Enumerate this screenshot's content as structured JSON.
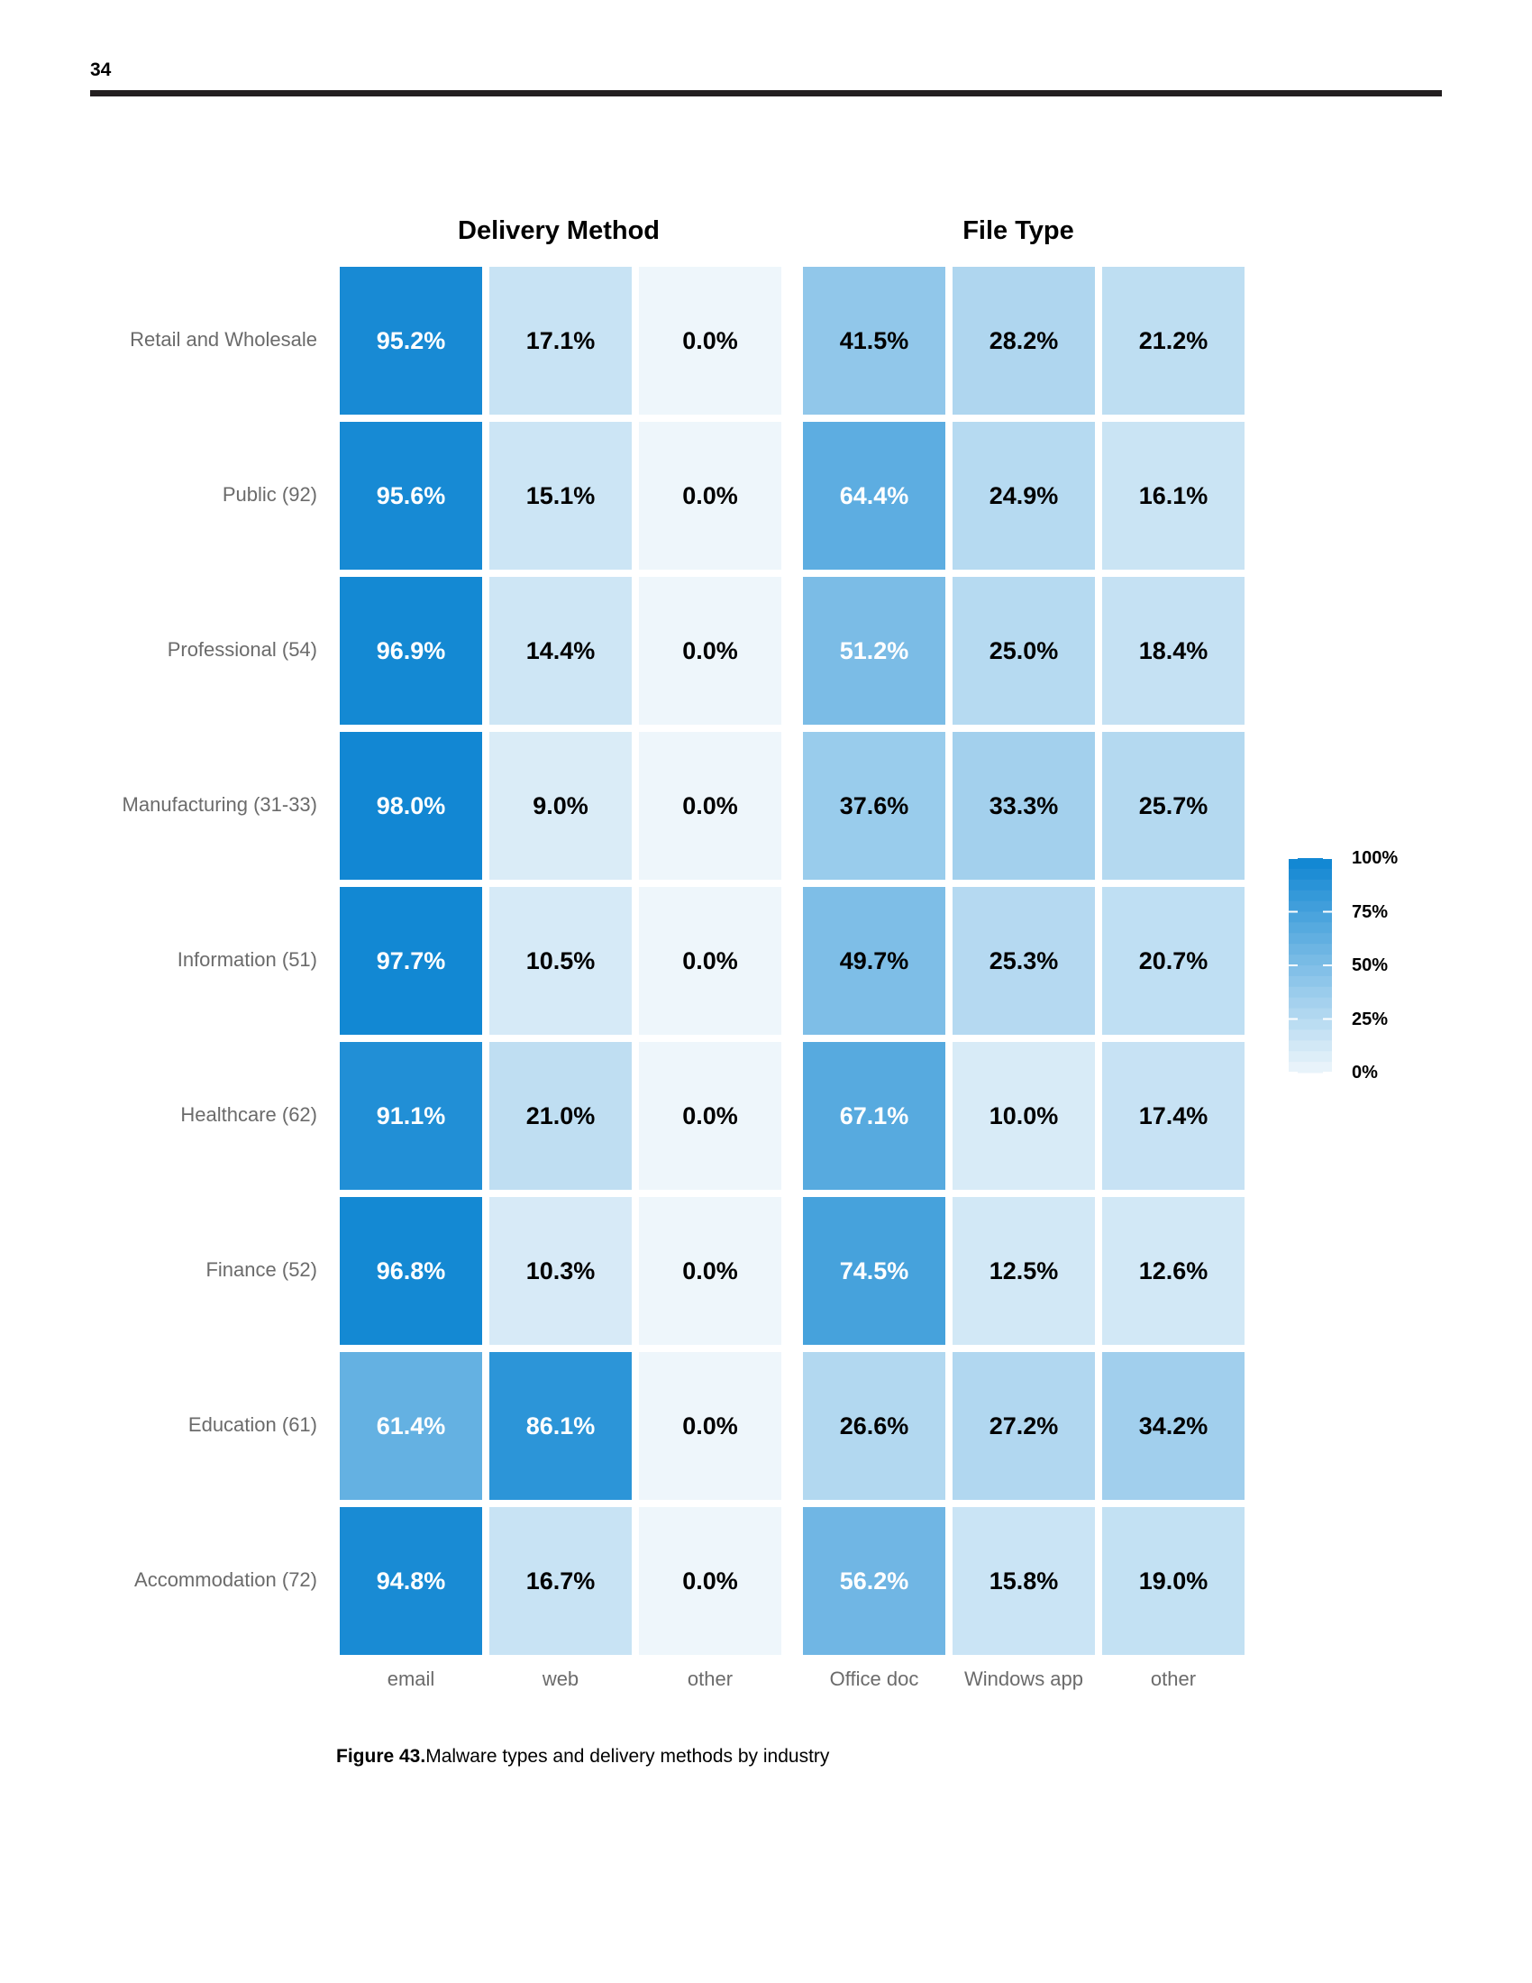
{
  "page_number": "34",
  "caption": {
    "figure_label": "Figure 43.",
    "text": "Malware types and delivery methods by industry"
  },
  "chart_data": {
    "type": "heatmap",
    "groups": [
      {
        "title": "Delivery Method",
        "columns": [
          "email",
          "web",
          "other"
        ]
      },
      {
        "title": "File Type",
        "columns": [
          "Office doc",
          "Windows app",
          "other"
        ]
      }
    ],
    "rows": [
      {
        "label": "Retail and Wholesale",
        "values": [
          95.2,
          17.1,
          0.0,
          41.5,
          28.2,
          21.2
        ]
      },
      {
        "label": "Public (92)",
        "values": [
          95.6,
          15.1,
          0.0,
          64.4,
          24.9,
          16.1
        ]
      },
      {
        "label": "Professional (54)",
        "values": [
          96.9,
          14.4,
          0.0,
          51.2,
          25.0,
          18.4
        ]
      },
      {
        "label": "Manufacturing (31-33)",
        "values": [
          98.0,
          9.0,
          0.0,
          37.6,
          33.3,
          25.7
        ]
      },
      {
        "label": "Information (51)",
        "values": [
          97.7,
          10.5,
          0.0,
          49.7,
          25.3,
          20.7
        ]
      },
      {
        "label": "Healthcare (62)",
        "values": [
          91.1,
          21.0,
          0.0,
          67.1,
          10.0,
          17.4
        ]
      },
      {
        "label": "Finance (52)",
        "values": [
          96.8,
          10.3,
          0.0,
          74.5,
          12.5,
          12.6
        ]
      },
      {
        "label": "Education (61)",
        "values": [
          61.4,
          86.1,
          0.0,
          26.6,
          27.2,
          34.2
        ]
      },
      {
        "label": "Accommodation (72)",
        "values": [
          94.8,
          16.7,
          0.0,
          56.2,
          15.8,
          19.0
        ]
      }
    ],
    "value_format": "percent_one_decimal",
    "legend": {
      "labels": [
        "100%",
        "75%",
        "50%",
        "25%",
        "0%"
      ],
      "values": [
        100,
        75,
        50,
        25,
        0
      ],
      "position": "right"
    },
    "colors": {
      "low": "#eef6fb",
      "high": "#0d85d2",
      "text_light": "#ffffff",
      "text_dark": "#000000"
    }
  }
}
